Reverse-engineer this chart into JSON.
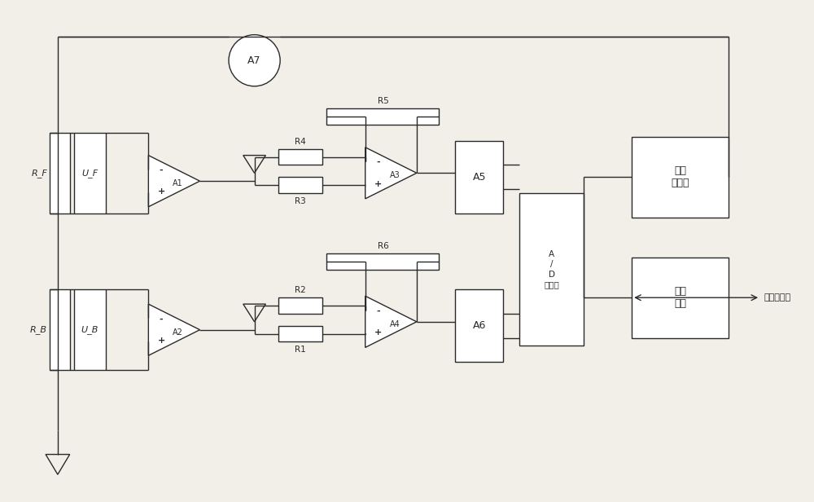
{
  "bg_color": "#f2efe9",
  "line_color": "#2a2a2a",
  "figsize": [
    10,
    6.16
  ],
  "dpi": 100,
  "xlim": [
    0,
    100
  ],
  "ylim": [
    0,
    61.6
  ]
}
